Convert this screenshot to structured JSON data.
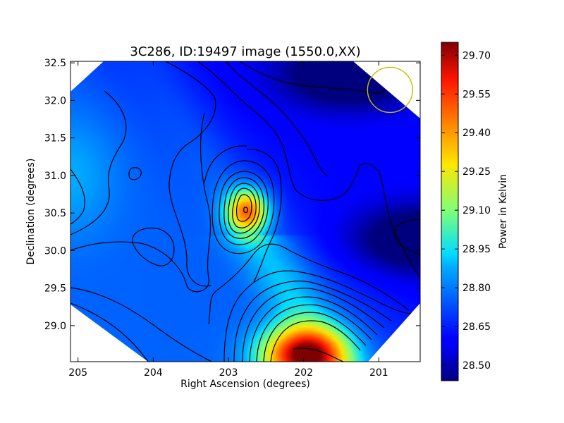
{
  "chart_data": {
    "type": "heatmap",
    "title": "3C286, ID:19497 image (1550.0,XX)",
    "xlabel": "Right Ascension (degrees)",
    "ylabel": "Declination (degrees)",
    "xlim": [
      205.1,
      200.45
    ],
    "ylim": [
      28.52,
      32.52
    ],
    "x_ticks": [
      "205",
      "204",
      "203",
      "202",
      "201"
    ],
    "x_tick_values": [
      205,
      204,
      203,
      202,
      201
    ],
    "y_ticks": [
      "29.0",
      "29.5",
      "30.0",
      "30.5",
      "31.0",
      "31.5",
      "32.0",
      "32.5"
    ],
    "y_tick_values": [
      29.0,
      29.5,
      30.0,
      30.5,
      31.0,
      31.5,
      32.0,
      32.5
    ],
    "colorbar": {
      "label": "Power in Kelvin",
      "range": [
        28.44,
        29.75
      ],
      "ticks": [
        "28.50",
        "28.65",
        "28.80",
        "28.95",
        "29.10",
        "29.25",
        "29.40",
        "29.55",
        "29.70"
      ],
      "tick_values": [
        28.5,
        28.65,
        28.8,
        28.95,
        29.1,
        29.25,
        29.4,
        29.55,
        29.7
      ],
      "colormap": "jet"
    },
    "features": [
      {
        "kind": "peak",
        "ra": 202.75,
        "dec": 30.52,
        "value": 29.5
      },
      {
        "kind": "peak",
        "ra": 202.0,
        "dec": 28.6,
        "value": 29.74
      },
      {
        "kind": "minimum",
        "ra": 201.4,
        "dec": 32.35,
        "value": 28.46
      },
      {
        "kind": "minimum",
        "ra": 200.45,
        "dec": 30.15,
        "value": 28.47
      }
    ],
    "marker_circle": {
      "ra": 200.85,
      "dec": 32.14,
      "color": "#bfbf00"
    },
    "contours": "black",
    "grid": false
  }
}
